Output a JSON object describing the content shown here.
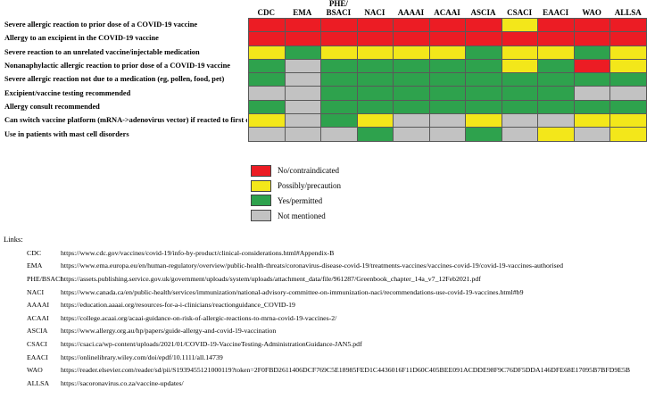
{
  "chart_data": {
    "type": "heatmap",
    "title": "",
    "columns": [
      "CDC",
      "EMA",
      "PHE/BSACI",
      "NACI",
      "AAAAI",
      "ACAAI",
      "ASCIA",
      "CSACI",
      "EAACI",
      "WAO",
      "ALLSA"
    ],
    "rows": [
      "Severe allergic reaction to prior dose of a COVID-19 vaccine",
      "Allergy to an excipient in the COVID-19 vaccine",
      "Severe reaction to an unrelated vaccine/injectable medication",
      "Nonanaphylactic allergic reaction to prior dose of a COVID-19 vaccine",
      "Severe allergic reaction not due to a medication (eg, pollen, food, pet)",
      "Excipient/vaccine testing recommended",
      "Allergy consult recommended",
      "Can switch vaccine platform (mRNA->adenovirus vector) if reacted to first dose",
      "Use in patients with mast cell disorders"
    ],
    "values": [
      [
        "no",
        "no",
        "no",
        "no",
        "no",
        "no",
        "no",
        "possibly",
        "no",
        "no",
        "no"
      ],
      [
        "no",
        "no",
        "no",
        "no",
        "no",
        "no",
        "no",
        "no",
        "no",
        "no",
        "no"
      ],
      [
        "possibly",
        "yes",
        "possibly",
        "possibly",
        "possibly",
        "possibly",
        "yes",
        "possibly",
        "possibly",
        "yes",
        "possibly"
      ],
      [
        "yes",
        "not_mentioned",
        "yes",
        "yes",
        "yes",
        "yes",
        "yes",
        "possibly",
        "yes",
        "no",
        "possibly"
      ],
      [
        "yes",
        "not_mentioned",
        "yes",
        "yes",
        "yes",
        "yes",
        "yes",
        "yes",
        "yes",
        "yes",
        "yes"
      ],
      [
        "not_mentioned",
        "not_mentioned",
        "yes",
        "yes",
        "yes",
        "yes",
        "yes",
        "yes",
        "yes",
        "not_mentioned",
        "not_mentioned"
      ],
      [
        "yes",
        "not_mentioned",
        "yes",
        "yes",
        "yes",
        "yes",
        "yes",
        "yes",
        "yes",
        "yes",
        "yes"
      ],
      [
        "possibly",
        "not_mentioned",
        "yes",
        "possibly",
        "not_mentioned",
        "not_mentioned",
        "possibly",
        "not_mentioned",
        "not_mentioned",
        "possibly",
        "possibly"
      ],
      [
        "not_mentioned",
        "not_mentioned",
        "not_mentioned",
        "yes",
        "not_mentioned",
        "not_mentioned",
        "yes",
        "not_mentioned",
        "possibly",
        "not_mentioned",
        "possibly"
      ]
    ],
    "legend": [
      {
        "key": "no",
        "label": "No/contraindicated",
        "color": "#EC1C24"
      },
      {
        "key": "possibly",
        "label": "Possibly/precaution",
        "color": "#F3E71A"
      },
      {
        "key": "yes",
        "label": "Yes/permitted",
        "color": "#2EA24D"
      },
      {
        "key": "not_mentioned",
        "label": "Not mentioned",
        "color": "#C2C2C2"
      }
    ],
    "layout": {
      "grid": true,
      "legend_position": "below-left"
    }
  },
  "links": {
    "title": "Links:",
    "items": [
      {
        "org": "CDC",
        "url": "https://www.cdc.gov/vaccines/covid-19/info-by-product/clinical-considerations.html#Appendix-B"
      },
      {
        "org": "EMA",
        "url": "https://www.ema.europa.eu/en/human-regulatory/overview/public-health-threats/coronavirus-disease-covid-19/treatments-vaccines/vaccines-covid-19/covid-19-vaccines-authorised"
      },
      {
        "org": "PHE/BSACI",
        "url": "https://assets.publishing.service.gov.uk/government/uploads/system/uploads/attachment_data/file/961287/Greenbook_chapter_14a_v7_12Feb2021.pdf"
      },
      {
        "org": "NACI",
        "url": "https://www.canada.ca/en/public-health/services/immunization/national-advisory-committee-on-immunization-naci/recommendations-use-covid-19-vaccines.html#b9"
      },
      {
        "org": "AAAAI",
        "url": "https://education.aaaai.org/resources-for-a-i-clinicians/reactionguidance_COVID-19"
      },
      {
        "org": "ACAAI",
        "url": "https://college.acaai.org/acaai-guidance-on-risk-of-allergic-reactions-to-mrna-covid-19-vaccines-2/"
      },
      {
        "org": "ASCIA",
        "url": "https://www.allergy.org.au/hp/papers/guide-allergy-and-covid-19-vaccination"
      },
      {
        "org": "CSACI",
        "url": "https://csaci.ca/wp-content/uploads/2021/01/COVID-19-VaccineTesting-AdministrationGuidance-JAN5.pdf"
      },
      {
        "org": "EAACI",
        "url": "https://onlinelibrary.wiley.com/doi/epdf/10.1111/all.14739"
      },
      {
        "org": "WAO",
        "url": "https://reader.elsevier.com/reader/sd/pii/S1939455121000119?token=2F0FBD2611406DCF769C5E18985FED1C4436016F11D60C405BEE091ACDDE98F9C76DF5DDA146DFE68E17095B7BFD9E5B"
      },
      {
        "org": "ALLSA",
        "url": "https://sacoronavirus.co.za/vaccine-updates/"
      }
    ]
  }
}
